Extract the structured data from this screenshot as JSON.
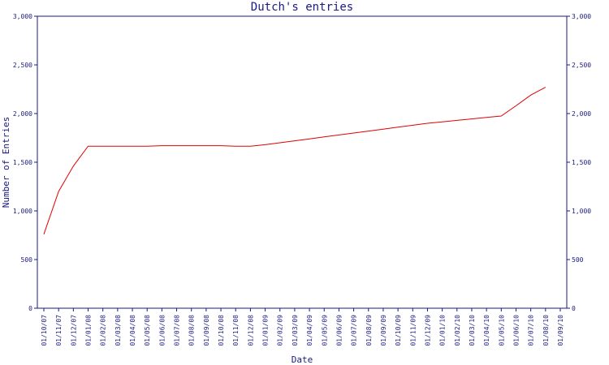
{
  "chart_data": {
    "type": "line",
    "title": "Dutch's entries",
    "xlabel": "Date",
    "ylabel": "Number of Entries",
    "ylim": [
      0,
      3000
    ],
    "yticks": [
      0,
      500,
      1000,
      1500,
      2000,
      2500,
      3000
    ],
    "ytick_labels": [
      "0",
      "500",
      "1,000",
      "1,500",
      "2,000",
      "2,500",
      "3,000"
    ],
    "grid": false,
    "line_color": "#e00000",
    "axis_color": "#1a1a80",
    "x": [
      "01/10/07",
      "01/11/07",
      "01/12/07",
      "01/01/08",
      "01/02/08",
      "01/03/08",
      "01/04/08",
      "01/05/08",
      "01/06/08",
      "01/07/08",
      "01/08/08",
      "01/09/08",
      "01/10/08",
      "01/11/08",
      "01/12/08",
      "01/01/09",
      "01/02/09",
      "01/03/09",
      "01/04/09",
      "01/05/09",
      "01/06/09",
      "01/07/09",
      "01/08/09",
      "01/09/09",
      "01/10/09",
      "01/11/09",
      "01/12/09",
      "01/01/10",
      "01/02/10",
      "01/03/10",
      "01/04/10",
      "01/05/10",
      "01/06/10",
      "01/07/10",
      "01/08/10",
      "01/09/10"
    ],
    "series": [
      {
        "values": [
          760,
          1200,
          1460,
          1665,
          1665,
          1665,
          1665,
          1665,
          1670,
          1670,
          1670,
          1670,
          1670,
          1665,
          1665,
          1680,
          1700,
          1720,
          1740,
          1760,
          1780,
          1800,
          1820,
          1840,
          1860,
          1880,
          1900,
          1915,
          1930,
          1945,
          1960,
          1975,
          2080,
          2190,
          2270,
          null
        ]
      }
    ]
  }
}
